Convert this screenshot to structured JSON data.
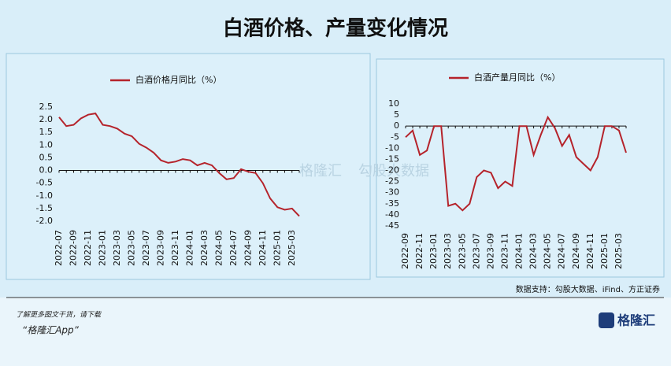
{
  "title": "白酒价格、产量变化情况",
  "chart_data": [
    {
      "type": "line",
      "categories": [
        "2022-07",
        null,
        "2022-09",
        null,
        "2022-11",
        null,
        "2023-01",
        null,
        "2023-03",
        null,
        "2023-05",
        null,
        "2023-07",
        null,
        "2023-09",
        null,
        "2023-11",
        null,
        "2024-01",
        null,
        "2024-03",
        null,
        "2024-05",
        null,
        "2024-07",
        null,
        "2024-09",
        null,
        "2024-11",
        null,
        "2025-01",
        null,
        "2025-03",
        null
      ],
      "series": [
        {
          "name": "白酒价格月同比（%）",
          "color": "#b5232b",
          "values": [
            2.1,
            1.75,
            1.8,
            2.05,
            2.2,
            2.25,
            1.8,
            1.75,
            1.65,
            1.45,
            1.35,
            1.05,
            0.9,
            0.7,
            0.4,
            0.3,
            0.35,
            0.45,
            0.4,
            0.2,
            0.3,
            0.2,
            -0.1,
            -0.35,
            -0.3,
            0.05,
            -0.05,
            -0.1,
            -0.5,
            -1.1,
            -1.45,
            -1.55,
            -1.5,
            -1.8
          ]
        }
      ],
      "ylim": [
        -2,
        2.5
      ],
      "yticks": [
        {
          "value": -2,
          "label": "-2.0"
        },
        -1.5,
        {
          "value": -1,
          "label": "-1.0"
        },
        -0.5,
        {
          "value": 0,
          "label": "0.0"
        },
        0.5,
        {
          "value": 1,
          "label": "1.0"
        },
        1.5,
        {
          "value": 2,
          "label": "2.0"
        },
        2.5
      ],
      "grid": false
    },
    {
      "type": "line",
      "categories": [
        "2022-09",
        null,
        "2022-11",
        null,
        "2023-01",
        null,
        "2023-03",
        null,
        "2023-05",
        null,
        "2023-07",
        null,
        "2023-09",
        null,
        "2023-11",
        null,
        "2024-01",
        null,
        "2024-03",
        null,
        "2024-05",
        null,
        "2024-07",
        null,
        "2024-09",
        null,
        "2024-11",
        null,
        "2025-01",
        null,
        "2025-03",
        null
      ],
      "series": [
        {
          "name": "白酒产量月同比（%）",
          "color": "#b5232b",
          "values": [
            -5,
            -2,
            -13,
            -11,
            0,
            0,
            -36,
            -35,
            -38,
            -35,
            -23,
            -20,
            -21,
            -28,
            -25,
            -27,
            0,
            0,
            -13,
            -4,
            4,
            -1,
            -9,
            -4,
            -14,
            -17,
            -20,
            -14,
            0,
            0,
            -2,
            -12
          ]
        }
      ],
      "ylim": [
        -45,
        10
      ],
      "yticks": [
        -45,
        -40,
        -35,
        -30,
        -25,
        -20,
        -15,
        -10,
        -5,
        0,
        5,
        10
      ],
      "grid": false
    }
  ],
  "source": "数据支持：勾股大数据、iFind、方正证券",
  "watermark": [
    "格隆汇",
    "勾股大数据"
  ],
  "footer": {
    "line1": "了解更多图文干货，请下载",
    "line2": "“格隆汇App”",
    "logo": "格隆汇"
  }
}
